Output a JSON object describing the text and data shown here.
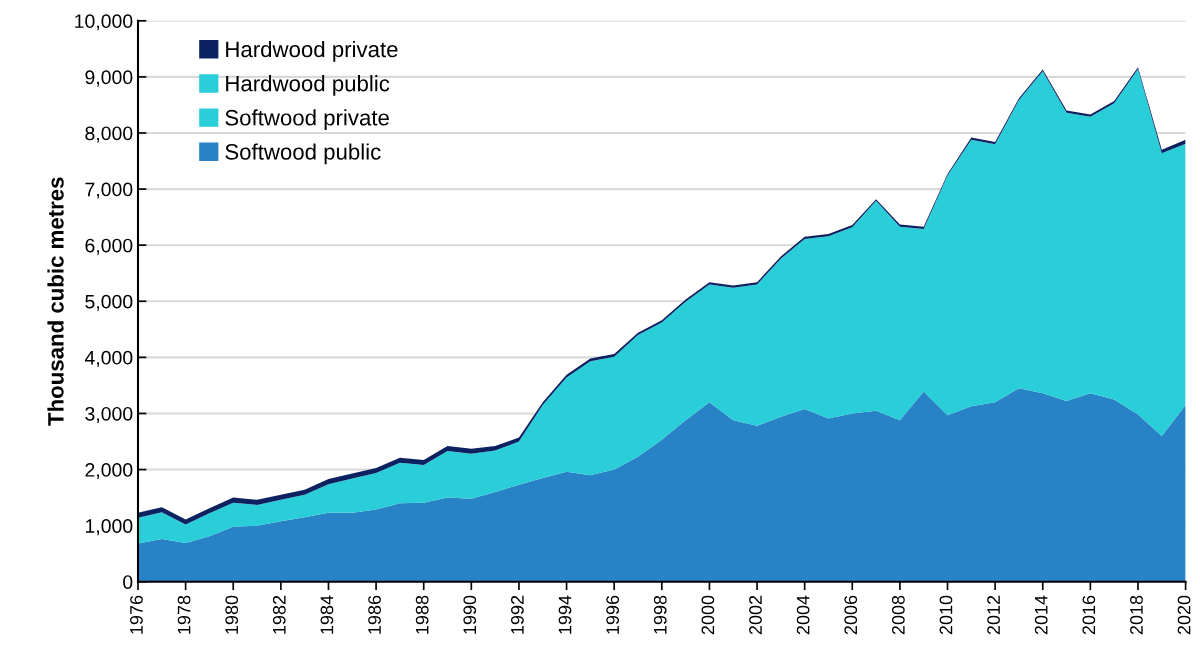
{
  "chart_data": {
    "type": "area",
    "stacked": true,
    "ylabel": "Thousand cubic metres",
    "x": [
      1976,
      1977,
      1978,
      1979,
      1980,
      1981,
      1982,
      1983,
      1984,
      1985,
      1986,
      1987,
      1988,
      1989,
      1990,
      1991,
      1992,
      1993,
      1994,
      1995,
      1996,
      1997,
      1998,
      1999,
      2000,
      2001,
      2002,
      2003,
      2004,
      2005,
      2006,
      2007,
      2008,
      2009,
      2010,
      2011,
      2012,
      2013,
      2014,
      2015,
      2016,
      2017,
      2018,
      2019,
      2020
    ],
    "series": [
      {
        "name": "Softwood public",
        "color": "#2882c6",
        "values": [
          680,
          760,
          690,
          810,
          980,
          1000,
          1080,
          1150,
          1230,
          1230,
          1290,
          1400,
          1410,
          1500,
          1480,
          1600,
          1730,
          1850,
          1960,
          1900,
          2000,
          2230,
          2530,
          2880,
          3200,
          2880,
          2780,
          2940,
          3080,
          2910,
          3000,
          3050,
          2880,
          3390,
          2970,
          3130,
          3200,
          3450,
          3360,
          3220,
          3360,
          3250,
          2980,
          2600,
          3150
        ]
      },
      {
        "name": "Softwood private",
        "color": "#29ced8",
        "values": [
          460,
          480,
          330,
          410,
          430,
          370,
          380,
          400,
          510,
          610,
          650,
          720,
          670,
          830,
          800,
          740,
          770,
          1300,
          1680,
          2030,
          2010,
          2170,
          2090,
          2110,
          2100,
          2360,
          2520,
          2820,
          3030,
          3250,
          3320,
          3740,
          3450,
          2900,
          4270,
          4750,
          4600,
          5140,
          5740,
          5140,
          4930,
          5280,
          6160,
          5040,
          4660
        ]
      },
      {
        "name": "Hardwood public",
        "color": "#29ced8",
        "values": [
          null,
          null,
          null,
          null,
          null,
          null,
          null,
          null,
          null,
          null,
          null,
          null,
          null,
          null,
          null,
          null,
          null,
          null,
          null,
          null,
          null,
          null,
          null,
          null,
          null,
          null,
          null,
          null,
          null,
          null,
          null,
          null,
          null,
          null,
          null,
          null,
          null,
          null,
          null,
          null,
          null,
          null,
          null,
          null,
          null
        ]
      },
      {
        "name": "Hardwood private",
        "color": "#0c2160",
        "values": [
          90,
          90,
          90,
          90,
          90,
          90,
          90,
          90,
          90,
          90,
          90,
          90,
          90,
          90,
          90,
          80,
          70,
          50,
          50,
          50,
          50,
          40,
          40,
          40,
          40,
          40,
          40,
          40,
          40,
          40,
          40,
          30,
          40,
          40,
          30,
          40,
          40,
          30,
          30,
          40,
          40,
          40,
          30,
          60,
          70
        ]
      }
    ],
    "xlim": [
      1976,
      2020
    ],
    "xticks": [
      1976,
      1978,
      1980,
      1982,
      1984,
      1986,
      1988,
      1990,
      1992,
      1994,
      1996,
      1998,
      2000,
      2002,
      2004,
      2006,
      2008,
      2010,
      2012,
      2014,
      2016,
      2018,
      2020
    ],
    "ylim": [
      0,
      10000
    ],
    "yticks": [
      0,
      {
        "value": 1000,
        "label": "1,000"
      },
      {
        "value": 2000,
        "label": "2,000"
      },
      {
        "value": 3000,
        "label": "3,000"
      },
      {
        "value": 4000,
        "label": "4,000"
      },
      {
        "value": 5000,
        "label": "5,000"
      },
      {
        "value": 6000,
        "label": "6,000"
      },
      {
        "value": 7000,
        "label": "7,000"
      },
      {
        "value": 8000,
        "label": "8,000"
      },
      {
        "value": 9000,
        "label": "9,000"
      },
      {
        "value": 10000,
        "label": "10,000"
      }
    ],
    "grid": "y",
    "legend": "top left"
  }
}
